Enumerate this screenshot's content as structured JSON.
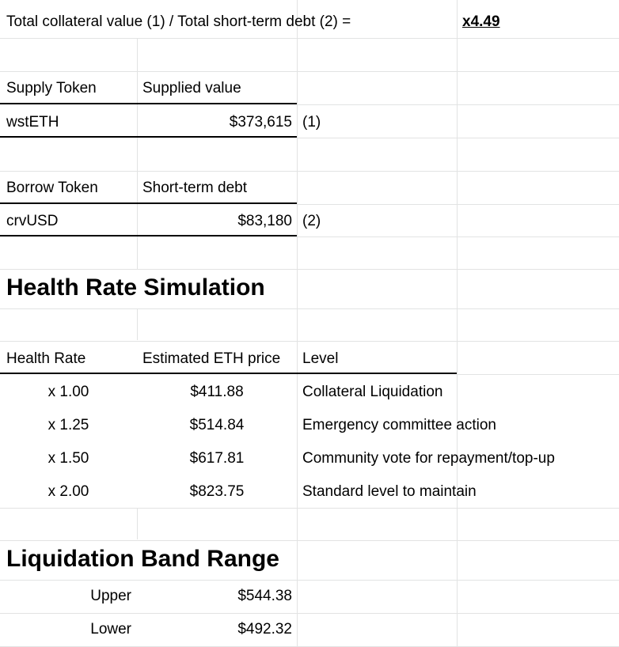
{
  "summary": {
    "ratio_label": "Total collateral value (1) / Total short-term debt (2) =",
    "ratio_value": "x4.49"
  },
  "supply": {
    "col1_header": "Supply Token",
    "col2_header": "Supplied value",
    "token": "wstETH",
    "value": "$373,615",
    "note": "(1)"
  },
  "borrow": {
    "col1_header": "Borrow Token",
    "col2_header": "Short-term debt",
    "token": "crvUSD",
    "value": "$83,180",
    "note": "(2)"
  },
  "health": {
    "title": "Health Rate Simulation",
    "headers": [
      "Health Rate",
      "Estimated ETH price",
      "Level"
    ],
    "rows": [
      {
        "rate": "x 1.00",
        "price": "$411.88",
        "level": "Collateral Liquidation"
      },
      {
        "rate": "x 1.25",
        "price": "$514.84",
        "level": "Emergency committee action"
      },
      {
        "rate": "x 1.50",
        "price": "$617.81",
        "level": "Community vote for repayment/top-up"
      },
      {
        "rate": "x 2.00",
        "price": "$823.75",
        "level": "Standard level to maintain"
      }
    ]
  },
  "liquidation": {
    "title": "Liquidation Band Range",
    "rows": [
      {
        "label": "Upper",
        "value": "$544.38"
      },
      {
        "label": "Lower",
        "value": "$492.32"
      }
    ]
  }
}
